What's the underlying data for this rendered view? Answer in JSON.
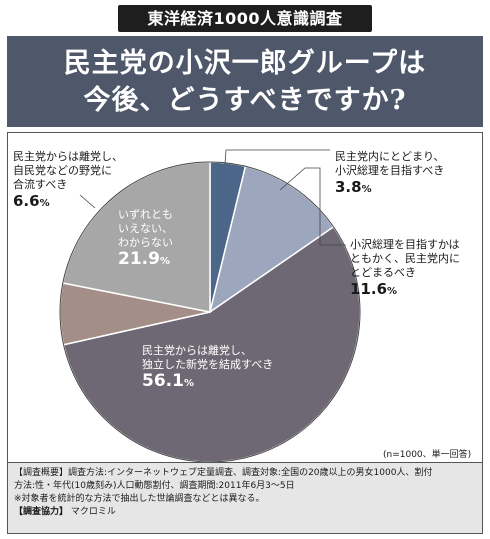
{
  "survey_tag": "東洋経済1000人意識調査",
  "headline": [
    "民主党の小沢一郎グループは",
    "今後、どうすべきですか?"
  ],
  "chart_data": {
    "type": "pie",
    "title": "民主党の小沢一郎グループは今後、どうすべきですか?",
    "unit": "%",
    "slices": [
      {
        "label": "民主党内にとどまり、小沢総理を目指すべき",
        "value": 3.8,
        "color": "#4c6689"
      },
      {
        "label": "小沢総理を目指すかはともかく、民主党内にとどまるべき",
        "value": 11.6,
        "color": "#9ca6bd"
      },
      {
        "label": "民主党からは離党し、独立した新党を結成すべき",
        "value": 56.1,
        "color": "#6e6874"
      },
      {
        "label": "民主党からは離党し、自民党などの野党に合流すべき",
        "value": 6.6,
        "color": "#a48e88"
      },
      {
        "label": "いずれともいえない、わからない",
        "value": 21.9,
        "color": "#a7a7a7"
      }
    ]
  },
  "labels": {
    "s1": {
      "lines": [
        "民主党内にとどまり、",
        "小沢総理を目指すべき"
      ],
      "value": "3.8"
    },
    "s2": {
      "lines": [
        "小沢総理を目指すかは",
        "ともかく、民主党内に",
        "とどまるべき"
      ],
      "value": "11.6"
    },
    "s3": {
      "lines": [
        "民主党からは離党し、",
        "独立した新党を結成すべき"
      ],
      "value": "56.1"
    },
    "s4": {
      "lines": [
        "民主党からは離党し、",
        "自民党などの野党に",
        "合流すべき"
      ],
      "value": "6.6"
    },
    "s5": {
      "lines": [
        "いずれとも",
        "いえない、",
        "わからない"
      ],
      "value": "21.9"
    }
  },
  "pct_sign": "%",
  "note_n": "(n=1000、単一回答)",
  "footer": {
    "line1": "【調査概要】調査方法:インターネットウェブ定量調査、調査対象:全国の20歳以上の男女1000人、割付",
    "line2": "方法:性・年代(10歳刻み)人口動態割付、調査期間:2011年6月3〜5日",
    "line3": "※対象者を統計的な方法で抽出した世論調査などとは異なる。",
    "line4_label": "【調査協力】",
    "line4_value": "マクロミル"
  }
}
